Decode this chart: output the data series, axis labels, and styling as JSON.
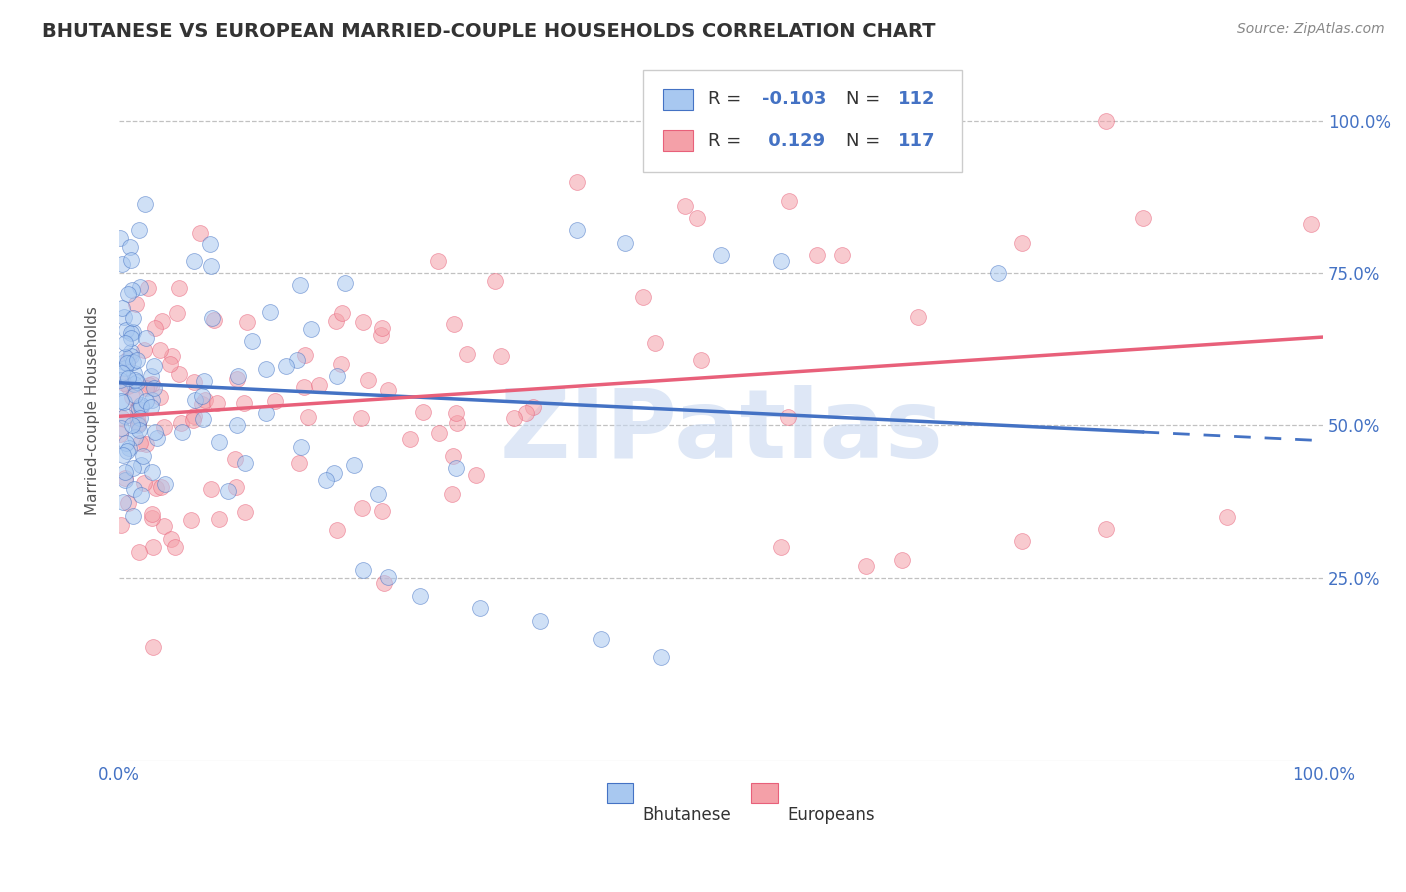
{
  "title": "BHUTANESE VS EUROPEAN MARRIED-COUPLE HOUSEHOLDS CORRELATION CHART",
  "source": "Source: ZipAtlas.com",
  "ylabel": "Married-couple Households",
  "ytick_labels": [
    "100.0%",
    "75.0%",
    "50.0%",
    "25.0%"
  ],
  "ytick_positions": [
    1.0,
    0.75,
    0.5,
    0.25
  ],
  "legend_label1": "Bhutanese",
  "legend_label2": "Europeans",
  "color_blue": "#A8C8F0",
  "color_pink": "#F4A0A8",
  "color_blue_line": "#4472C4",
  "color_pink_line": "#E8607A",
  "background_color": "#FFFFFF",
  "watermark_color": "#C8D8F0",
  "title_fontsize": 14,
  "source_fontsize": 10,
  "axis_fontsize": 11,
  "tick_fontsize": 12,
  "R_bhutanese": -0.103,
  "R_europeans": 0.129,
  "N_bhutanese": 112,
  "N_europeans": 117,
  "xlim": [
    0.0,
    1.0
  ],
  "ylim": [
    -0.05,
    1.1
  ],
  "line_b_start": 0.57,
  "line_b_end": 0.475,
  "line_e_start": 0.515,
  "line_e_end": 0.645
}
